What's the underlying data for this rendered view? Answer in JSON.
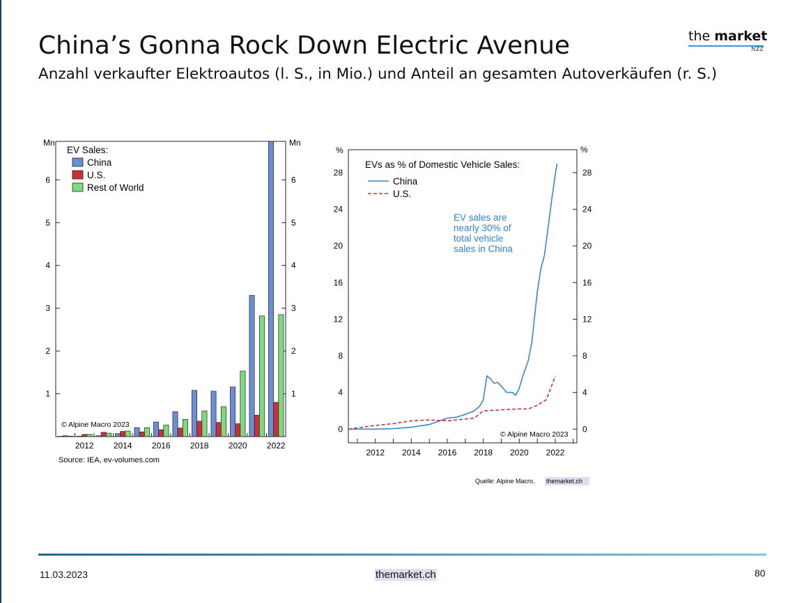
{
  "slide": {
    "title": "China’s Gonna Rock Down Electric Avenue",
    "subtitle": "Anzahl verkaufter Elektroautos (l. S., in Mio.) und Anteil an gesamten Autoverkäufen (r. S.)",
    "logo": {
      "main_light": "the ",
      "main_bold": "market",
      "sub": "NZZ"
    },
    "footer": {
      "date": "11.03.2023",
      "site": "themarket.ch",
      "page": "80"
    },
    "colors": {
      "brand_line": "#2a9fd6",
      "footer_dark": "#1b6a8f"
    }
  },
  "chart_data": [
    {
      "type": "bar",
      "legend_title": "EV Sales:",
      "unit_left": "Mn",
      "unit_right": "Mn",
      "categories": [
        "2011",
        "2012",
        "2013",
        "2014",
        "2015",
        "2016",
        "2017",
        "2018",
        "2019",
        "2020",
        "2021",
        "2022"
      ],
      "x_tick_labels": [
        "2012",
        "2014",
        "2016",
        "2018",
        "2020",
        "2022"
      ],
      "series": [
        {
          "name": "China",
          "color": "#6b8fd6",
          "values": [
            0.005,
            0.01,
            0.02,
            0.07,
            0.21,
            0.34,
            0.58,
            1.08,
            1.06,
            1.16,
            3.3,
            6.9
          ]
        },
        {
          "name": "U.S.",
          "color": "#c8313a",
          "values": [
            0.02,
            0.05,
            0.1,
            0.12,
            0.11,
            0.16,
            0.2,
            0.36,
            0.33,
            0.3,
            0.5,
            0.8
          ]
        },
        {
          "name": "Rest of World",
          "color": "#7fd97f",
          "values": [
            0.01,
            0.05,
            0.08,
            0.13,
            0.21,
            0.27,
            0.4,
            0.6,
            0.7,
            1.53,
            2.82,
            2.85
          ]
        }
      ],
      "ylim": [
        0,
        6.9
      ],
      "y_ticks": [
        1,
        2,
        3,
        4,
        5,
        6
      ],
      "copyright": "© Alpine Macro 2023",
      "source": "Source: IEA, ev-volumes.com"
    },
    {
      "type": "line",
      "legend_title": "EVs as % of Domestic Vehicle Sales:",
      "unit_left": "%",
      "unit_right": "%",
      "xlim": [
        2010.5,
        2023.2
      ],
      "ylim": [
        -1.5,
        30.5
      ],
      "y_ticks": [
        0,
        4,
        8,
        12,
        16,
        20,
        24,
        28
      ],
      "x_tick_labels": [
        "2012",
        "2014",
        "2016",
        "2018",
        "2020",
        "2022"
      ],
      "annotation": [
        "EV sales are",
        "nearly 30% of",
        "total vehicle",
        "sales in China"
      ],
      "series": [
        {
          "name": "China",
          "color": "#3a86c8",
          "style": "solid",
          "x": [
            2010.5,
            2012,
            2013,
            2014,
            2015,
            2016,
            2016.5,
            2017,
            2017.5,
            2017.8,
            2018,
            2018.2,
            2018.4,
            2018.6,
            2018.8,
            2019,
            2019.3,
            2019.6,
            2019.8,
            2020,
            2020.2,
            2020.5,
            2020.7,
            2021,
            2021.2,
            2021.4,
            2021.6,
            2021.8,
            2022,
            2022.1
          ],
          "y": [
            0,
            0,
            0.05,
            0.2,
            0.5,
            1.2,
            1.3,
            1.6,
            2.0,
            2.5,
            3.2,
            5.8,
            5.5,
            5.0,
            5.1,
            4.7,
            4.0,
            4.0,
            3.7,
            4.5,
            5.8,
            7.5,
            9.5,
            15.0,
            17.5,
            19.0,
            22.0,
            25.0,
            27.8,
            29.0
          ]
        },
        {
          "name": "U.S.",
          "color": "#c8313a",
          "style": "dashed",
          "x": [
            2010.5,
            2012,
            2013,
            2014,
            2015,
            2016,
            2017,
            2017.5,
            2018,
            2019,
            2020,
            2020.5,
            2021,
            2021.5,
            2022
          ],
          "y": [
            0,
            0.4,
            0.6,
            0.9,
            1.0,
            0.9,
            1.1,
            1.2,
            2.0,
            2.1,
            2.2,
            2.2,
            2.6,
            3.2,
            5.8
          ]
        }
      ],
      "copyright": "© Alpine Macro 2023",
      "source_label": "Quelle: Alpine Macro,",
      "source_site": "themarket.ch"
    }
  ]
}
